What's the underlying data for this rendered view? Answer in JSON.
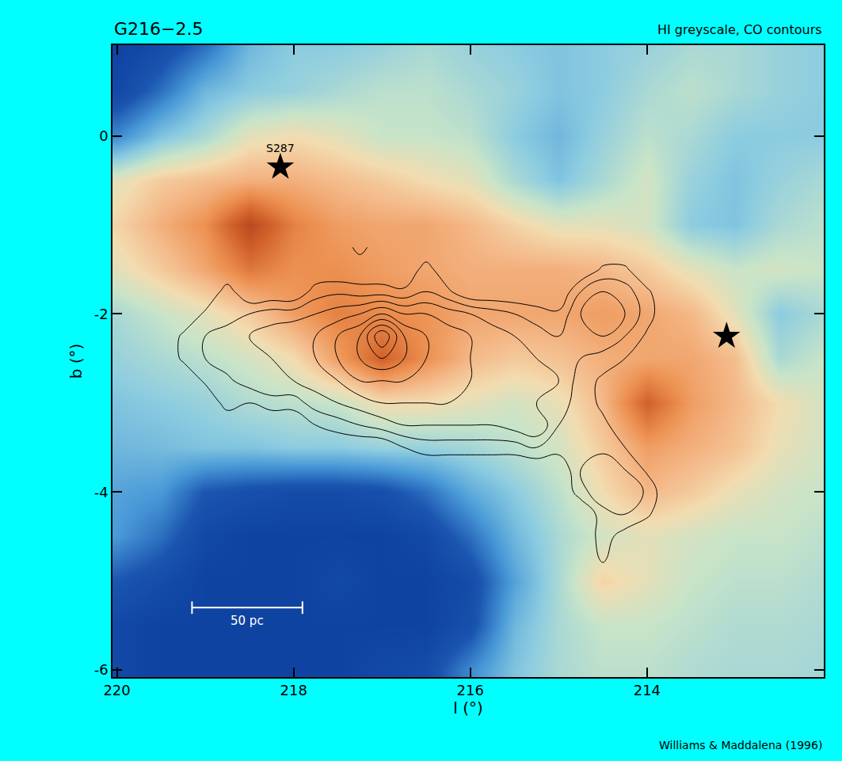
{
  "chart_data": {
    "type": "heatmap",
    "title": "G216−2.5",
    "subtitle": "HI greyscale, CO contours",
    "credit": "Williams & Maddalena (1996)",
    "x_label": "l (°)",
    "y_label": "b (°)",
    "xlim": [
      220.05,
      212.0
    ],
    "ylim": [
      -6.08,
      1.02
    ],
    "xticks": [
      220,
      218,
      216,
      214
    ],
    "yticks": [
      0,
      -2,
      -4,
      -6
    ],
    "hi": {
      "l": [
        220,
        219.5,
        219,
        218.5,
        218,
        217.5,
        217,
        216.5,
        216,
        215.5,
        215,
        214.5,
        214,
        213.5,
        213,
        212.5,
        212
      ],
      "b": [
        1,
        0.5,
        0,
        -0.5,
        -1,
        -1.5,
        -2,
        -2.5,
        -3,
        -3.5,
        -4,
        -4.5,
        -5,
        -5.5,
        -6
      ],
      "zlim": [
        0,
        100
      ],
      "z": [
        [
          5,
          10,
          20,
          35,
          40,
          40,
          42,
          45,
          42,
          40,
          38,
          40,
          42,
          45,
          45,
          42,
          40
        ],
        [
          8,
          20,
          35,
          40,
          42,
          45,
          48,
          48,
          45,
          42,
          38,
          40,
          45,
          48,
          45,
          42,
          40
        ],
        [
          25,
          38,
          45,
          55,
          58,
          55,
          50,
          50,
          48,
          40,
          35,
          42,
          48,
          45,
          40,
          40,
          40
        ],
        [
          55,
          62,
          65,
          68,
          68,
          65,
          62,
          58,
          55,
          45,
          38,
          45,
          52,
          42,
          38,
          42,
          45
        ],
        [
          60,
          68,
          75,
          92,
          78,
          72,
          70,
          70,
          66,
          60,
          55,
          55,
          52,
          40,
          38,
          45,
          48
        ],
        [
          55,
          62,
          70,
          80,
          75,
          75,
          72,
          70,
          68,
          68,
          68,
          66,
          62,
          55,
          50,
          52,
          50
        ],
        [
          45,
          50,
          55,
          62,
          72,
          78,
          76,
          74,
          70,
          70,
          70,
          72,
          70,
          66,
          55,
          40,
          45
        ],
        [
          42,
          45,
          48,
          52,
          58,
          72,
          85,
          75,
          66,
          62,
          64,
          68,
          70,
          70,
          65,
          45,
          50
        ],
        [
          38,
          40,
          42,
          46,
          48,
          50,
          58,
          58,
          55,
          52,
          56,
          66,
          85,
          72,
          66,
          58,
          52
        ],
        [
          35,
          36,
          38,
          38,
          40,
          40,
          42,
          42,
          44,
          48,
          52,
          62,
          72,
          68,
          64,
          56,
          52
        ],
        [
          30,
          28,
          15,
          12,
          10,
          10,
          12,
          20,
          32,
          40,
          48,
          58,
          66,
          62,
          56,
          52,
          50
        ],
        [
          28,
          20,
          8,
          5,
          5,
          5,
          5,
          8,
          20,
          35,
          45,
          52,
          55,
          52,
          50,
          50,
          48
        ],
        [
          15,
          10,
          5,
          5,
          5,
          8,
          5,
          5,
          10,
          30,
          45,
          60,
          55,
          50,
          48,
          48,
          46
        ],
        [
          8,
          5,
          5,
          5,
          5,
          5,
          5,
          5,
          12,
          35,
          45,
          50,
          50,
          48,
          46,
          46,
          45
        ],
        [
          8,
          5,
          5,
          5,
          5,
          5,
          8,
          10,
          25,
          38,
          45,
          48,
          48,
          46,
          45,
          45,
          44
        ]
      ]
    },
    "co": {
      "l": [
        219.5,
        219.25,
        219,
        218.75,
        218.5,
        218.25,
        218,
        217.75,
        217.5,
        217.25,
        217,
        216.75,
        216.5,
        216.25,
        216,
        215.75,
        215.5,
        215.25,
        215,
        214.75,
        214.5,
        214.25,
        214,
        213.75
      ],
      "b": [
        -1.25,
        -1.5,
        -1.75,
        -2,
        -2.25,
        -2.5,
        -2.75,
        -3,
        -3.25,
        -3.5,
        -3.75,
        -4,
        -4.25,
        -4.5,
        -4.75,
        -5
      ],
      "levels": {
        "start": 1,
        "end": 8,
        "size": 1
      },
      "z": [
        [
          0,
          0,
          0,
          0,
          0,
          0,
          0,
          0,
          0,
          1.5,
          0,
          0,
          0,
          0,
          0,
          0,
          0,
          0,
          0,
          0,
          0,
          0,
          0,
          0
        ],
        [
          0,
          0,
          0,
          0,
          0,
          0,
          0,
          0,
          0,
          0,
          0,
          0,
          1.5,
          0,
          0,
          0,
          0,
          0,
          0,
          0,
          1.2,
          1.2,
          0,
          0
        ],
        [
          0,
          0,
          0,
          1.5,
          0,
          0,
          0,
          1.5,
          1.8,
          1.5,
          1.5,
          1.2,
          2,
          1.2,
          0,
          0,
          0,
          0,
          0,
          2,
          3,
          2.5,
          1.2,
          0
        ],
        [
          0,
          0,
          1.2,
          1.5,
          2,
          2.5,
          2.5,
          3,
          3.5,
          4,
          5,
          4,
          4,
          3.5,
          3,
          2.5,
          2,
          1.5,
          1.2,
          3,
          4,
          3,
          1.5,
          0
        ],
        [
          0,
          1.2,
          2,
          2.5,
          3,
          3.5,
          4,
          4,
          5,
          6,
          9,
          6,
          5,
          4.5,
          4,
          3.5,
          3,
          2.5,
          2,
          2.5,
          3,
          2,
          0.8,
          0
        ],
        [
          0,
          1.2,
          2,
          2.5,
          3,
          3,
          3.5,
          4,
          5,
          6,
          7,
          6,
          5,
          5,
          4,
          4,
          3.5,
          3,
          2.5,
          2,
          1.5,
          1,
          0,
          0
        ],
        [
          0,
          0,
          1.2,
          1.8,
          2.5,
          3,
          3,
          3.5,
          4,
          5,
          5,
          5,
          4.5,
          4.5,
          4,
          4,
          4,
          3.5,
          3,
          1.5,
          0.8,
          0,
          0,
          0
        ],
        [
          0,
          0,
          0,
          1.5,
          1,
          1.5,
          1.5,
          2.5,
          3,
          3.5,
          4,
          4,
          4,
          4,
          3.5,
          3.5,
          3.5,
          3,
          2.5,
          1.5,
          0.8,
          0,
          0,
          0
        ],
        [
          0,
          0,
          0,
          0,
          0,
          0,
          0,
          1,
          1.5,
          2,
          2.5,
          3,
          3,
          3,
          3,
          3,
          3.5,
          4,
          2,
          1.5,
          1.2,
          0.5,
          0,
          0
        ],
        [
          0,
          0,
          0,
          0,
          0,
          0,
          0,
          0,
          0,
          0,
          0,
          1,
          1.5,
          1.5,
          1.5,
          1.5,
          1.5,
          2,
          1.5,
          1.8,
          1.8,
          1,
          0,
          0
        ],
        [
          0,
          0,
          0,
          0,
          0,
          0,
          0,
          0,
          0,
          0,
          0,
          0,
          0,
          0,
          0,
          0,
          0,
          0,
          0,
          2,
          2.5,
          2,
          0.8,
          0
        ],
        [
          0,
          0,
          0,
          0,
          0,
          0,
          0,
          0,
          0,
          0,
          0,
          0,
          0,
          0,
          0,
          0,
          0,
          0,
          0,
          1.5,
          3,
          3,
          1.8,
          0
        ],
        [
          0,
          0,
          0,
          0,
          0,
          0,
          0,
          0,
          0,
          0,
          0,
          0,
          0,
          0,
          0,
          0,
          0,
          0,
          0,
          0,
          1.5,
          2,
          1.2,
          0
        ],
        [
          0,
          0,
          0,
          0,
          0,
          0,
          0,
          0,
          0,
          0,
          0,
          0,
          0,
          0,
          0,
          0,
          0,
          0,
          0,
          0,
          1.5,
          0.5,
          0,
          0
        ],
        [
          0,
          0,
          0,
          0,
          0,
          0,
          0,
          0,
          0,
          0,
          0,
          0,
          0,
          0,
          0,
          0,
          0,
          0,
          0,
          0,
          1.2,
          0,
          0,
          0
        ],
        [
          0,
          0,
          0,
          0,
          0,
          0,
          0,
          0,
          0,
          0,
          0,
          0,
          0,
          0,
          0,
          0,
          0,
          0,
          0,
          0,
          0,
          0,
          0,
          0
        ]
      ]
    },
    "stars": [
      {
        "l": 218.15,
        "b": -0.35,
        "label": "S287"
      },
      {
        "l": 213.1,
        "b": -2.25
      }
    ],
    "scale_bar": {
      "label": "50 pc",
      "l": [
        219.15,
        217.9
      ],
      "b": -5.3
    }
  }
}
